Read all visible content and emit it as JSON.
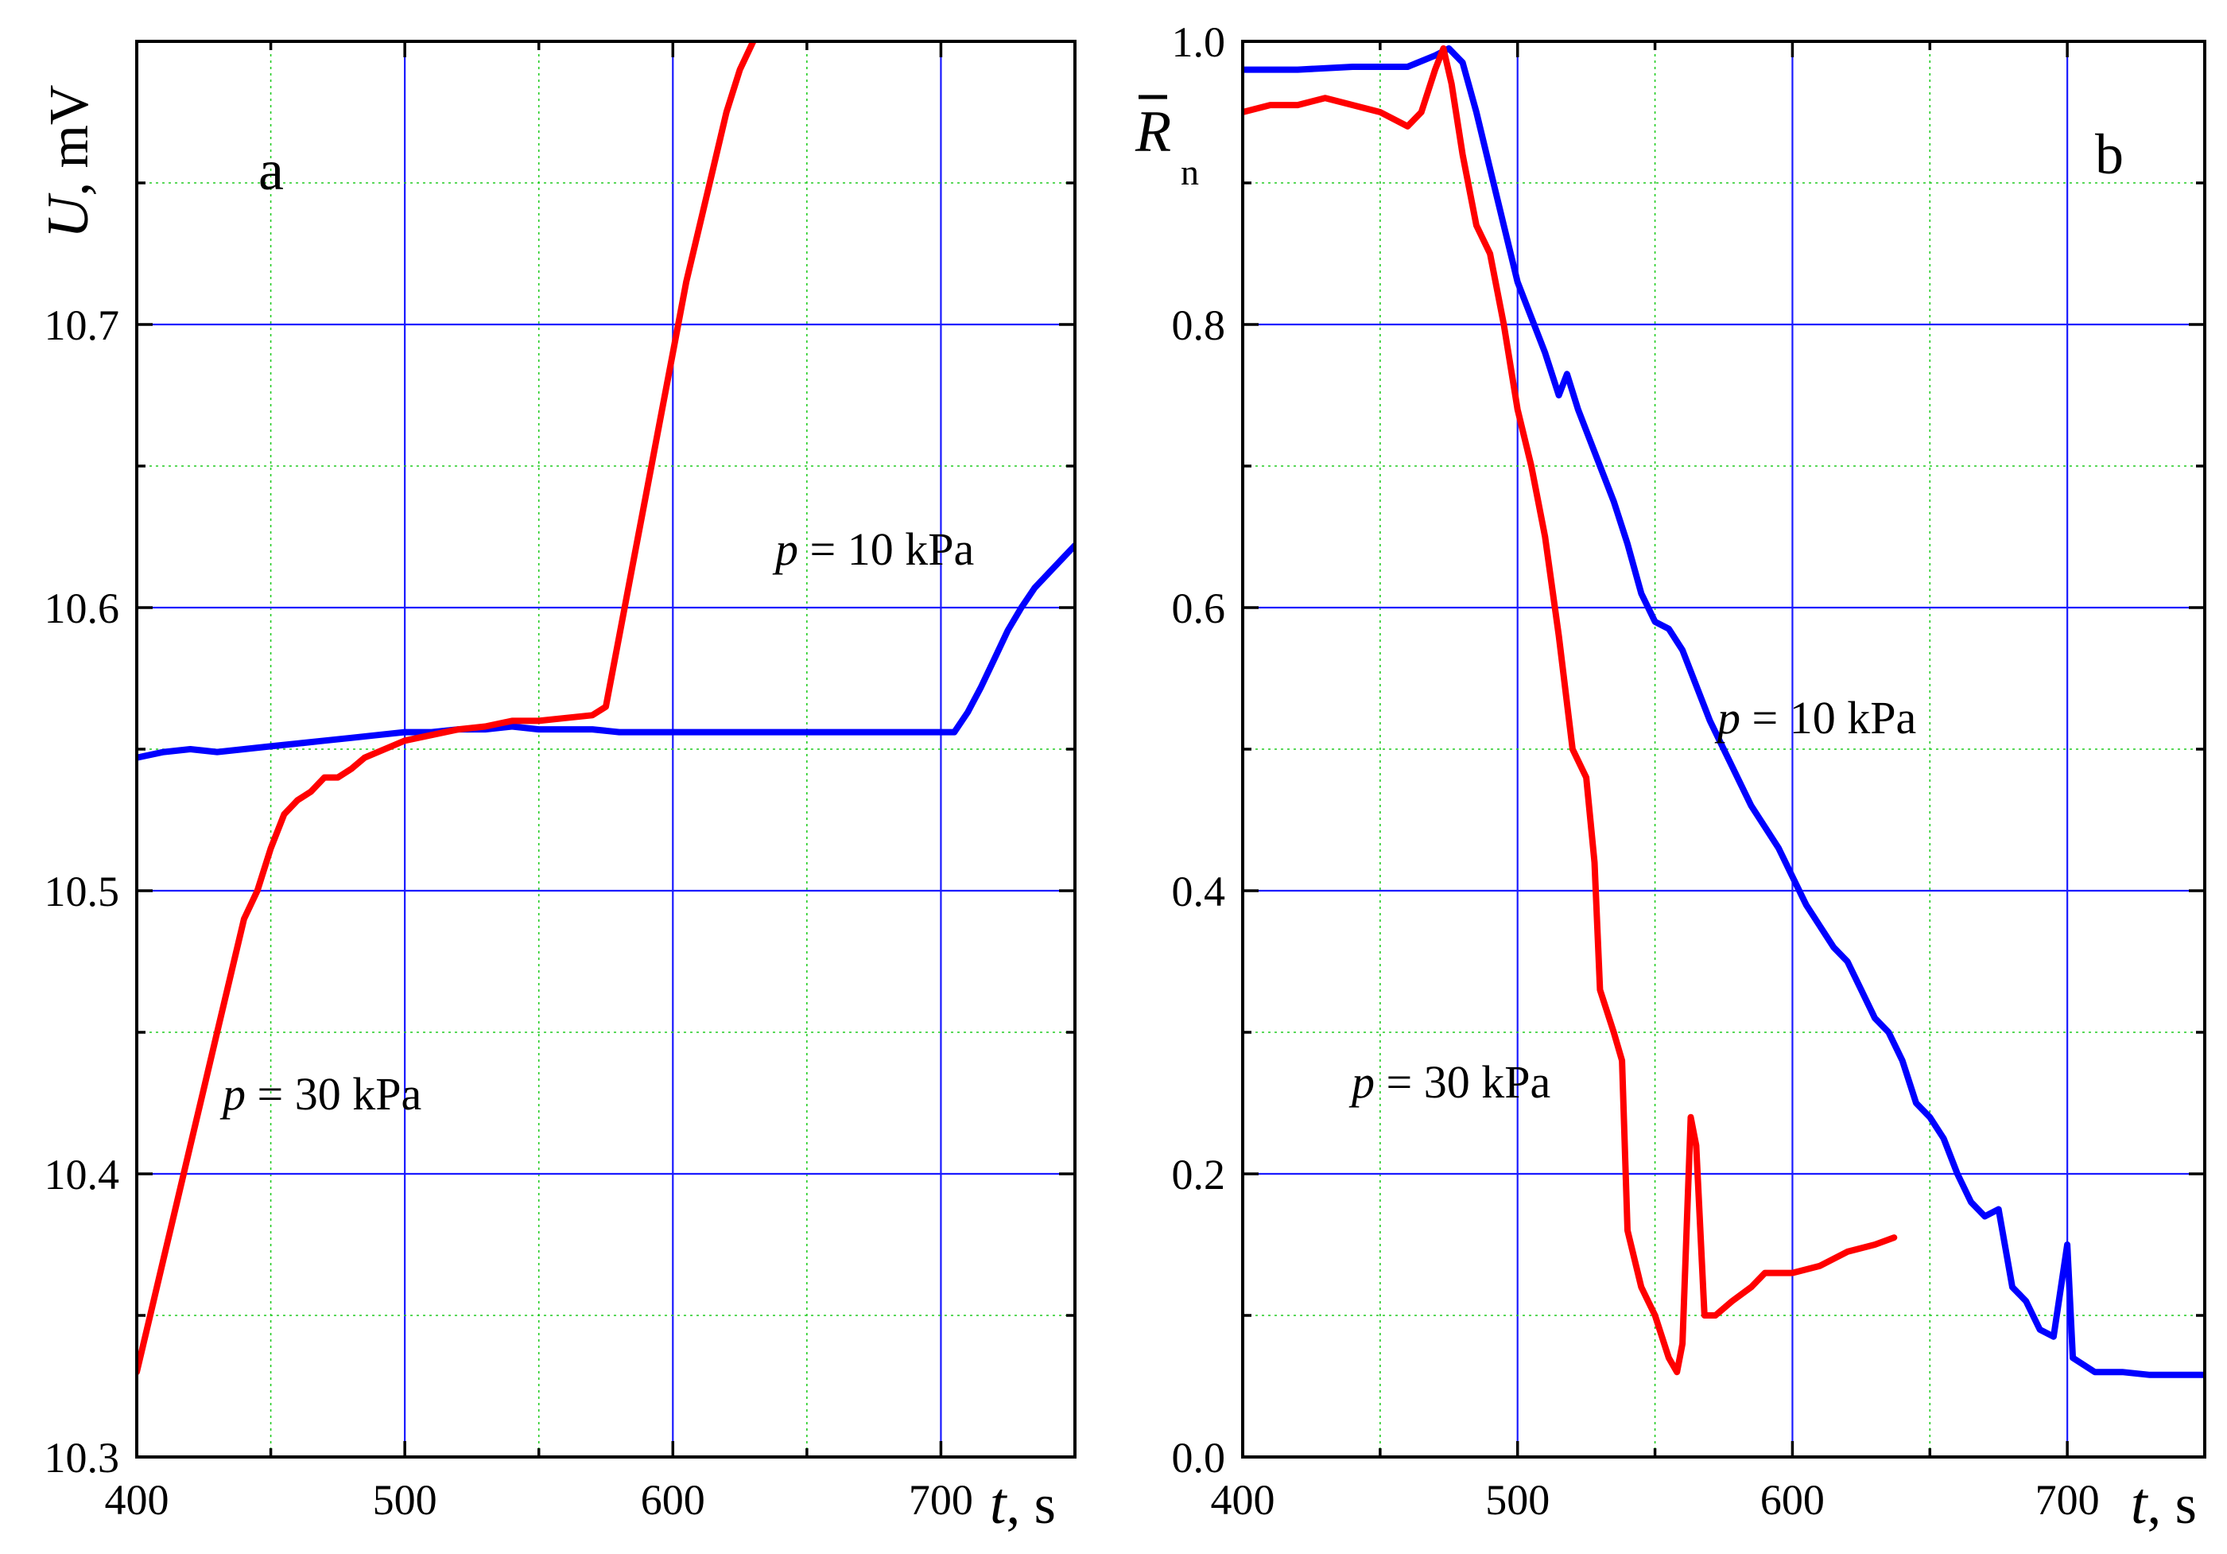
{
  "chart_data": [
    {
      "type": "line",
      "panel_label": "a",
      "ylabel_var": "U",
      "ylabel_unit": ", mV",
      "xlabel_var": "t",
      "xlabel_unit": ", s",
      "xlim": [
        400,
        750
      ],
      "ylim": [
        10.3,
        10.8
      ],
      "x_major_ticks": [
        400,
        500,
        600,
        700
      ],
      "x_minor_ticks": [
        450,
        550,
        650
      ],
      "y_major_ticks": [
        10.3,
        10.4,
        10.5,
        10.6,
        10.7
      ],
      "y_minor_ticks": [
        10.35,
        10.45,
        10.55,
        10.65,
        10.75
      ],
      "x_tick_labels": [
        "400",
        "500",
        "600",
        "700"
      ],
      "y_tick_labels": [
        "10.3",
        "10.4",
        "10.5",
        "10.6",
        "10.7"
      ],
      "grid": true,
      "annotations": [
        {
          "var": "p",
          "text": " = 10 kPa",
          "series": "p = 10 kPa"
        },
        {
          "var": "p",
          "text": " = 30 kPa",
          "series": "p = 30 kPa"
        }
      ],
      "series": [
        {
          "name": "p = 10 kPa",
          "color": "#0000ff",
          "points": [
            [
              400,
              10.547
            ],
            [
              410,
              10.549
            ],
            [
              420,
              10.55
            ],
            [
              430,
              10.549
            ],
            [
              440,
              10.55
            ],
            [
              450,
              10.551
            ],
            [
              460,
              10.552
            ],
            [
              470,
              10.553
            ],
            [
              480,
              10.554
            ],
            [
              490,
              10.555
            ],
            [
              500,
              10.556
            ],
            [
              510,
              10.556
            ],
            [
              520,
              10.557
            ],
            [
              530,
              10.557
            ],
            [
              540,
              10.558
            ],
            [
              550,
              10.557
            ],
            [
              560,
              10.557
            ],
            [
              570,
              10.557
            ],
            [
              580,
              10.556
            ],
            [
              590,
              10.556
            ],
            [
              600,
              10.556
            ],
            [
              610,
              10.556
            ],
            [
              620,
              10.556
            ],
            [
              630,
              10.556
            ],
            [
              640,
              10.556
            ],
            [
              650,
              10.556
            ],
            [
              660,
              10.556
            ],
            [
              670,
              10.556
            ],
            [
              680,
              10.556
            ],
            [
              690,
              10.556
            ],
            [
              700,
              10.556
            ],
            [
              705,
              10.556
            ],
            [
              710,
              10.563
            ],
            [
              715,
              10.572
            ],
            [
              720,
              10.582
            ],
            [
              725,
              10.592
            ],
            [
              730,
              10.6
            ],
            [
              735,
              10.607
            ],
            [
              740,
              10.612
            ],
            [
              745,
              10.617
            ],
            [
              750,
              10.622
            ]
          ]
        },
        {
          "name": "p = 30 kPa",
          "color": "#ff0000",
          "points": [
            [
              400,
              10.33
            ],
            [
              405,
              10.35
            ],
            [
              410,
              10.37
            ],
            [
              415,
              10.39
            ],
            [
              420,
              10.41
            ],
            [
              425,
              10.43
            ],
            [
              430,
              10.45
            ],
            [
              435,
              10.47
            ],
            [
              440,
              10.49
            ],
            [
              445,
              10.5
            ],
            [
              450,
              10.515
            ],
            [
              455,
              10.527
            ],
            [
              460,
              10.532
            ],
            [
              465,
              10.535
            ],
            [
              470,
              10.54
            ],
            [
              475,
              10.54
            ],
            [
              480,
              10.543
            ],
            [
              485,
              10.547
            ],
            [
              490,
              10.549
            ],
            [
              495,
              10.551
            ],
            [
              500,
              10.553
            ],
            [
              510,
              10.555
            ],
            [
              520,
              10.557
            ],
            [
              530,
              10.558
            ],
            [
              540,
              10.56
            ],
            [
              550,
              10.56
            ],
            [
              560,
              10.561
            ],
            [
              570,
              10.562
            ],
            [
              575,
              10.565
            ],
            [
              580,
              10.59
            ],
            [
              585,
              10.615
            ],
            [
              590,
              10.64
            ],
            [
              595,
              10.665
            ],
            [
              600,
              10.69
            ],
            [
              605,
              10.715
            ],
            [
              610,
              10.735
            ],
            [
              615,
              10.755
            ],
            [
              620,
              10.775
            ],
            [
              625,
              10.79
            ],
            [
              630,
              10.8
            ]
          ]
        }
      ]
    },
    {
      "type": "line",
      "panel_label": "b",
      "ylabel_var": "R",
      "ylabel_sub": "n",
      "xlabel_var": "t",
      "xlabel_unit": ", s",
      "xlim": [
        400,
        750
      ],
      "ylim": [
        0.0,
        1.0
      ],
      "x_major_ticks": [
        400,
        500,
        600,
        700
      ],
      "x_minor_ticks": [
        450,
        550,
        650
      ],
      "y_major_ticks": [
        0.0,
        0.2,
        0.4,
        0.6,
        0.8,
        1.0
      ],
      "y_minor_ticks": [
        0.1,
        0.3,
        0.5,
        0.7,
        0.9
      ],
      "x_tick_labels": [
        "400",
        "500",
        "600",
        "700"
      ],
      "y_tick_labels": [
        "0.0",
        "0.2",
        "0.4",
        "0.6",
        "0.8",
        "1.0"
      ],
      "grid": true,
      "annotations": [
        {
          "var": "p",
          "text": " = 10 kPa",
          "series": "p = 10 kPa"
        },
        {
          "var": "p",
          "text": " = 30 kPa",
          "series": "p = 30 kPa"
        }
      ],
      "series": [
        {
          "name": "p = 10 kPa",
          "color": "#0000ff",
          "points": [
            [
              400,
              0.98
            ],
            [
              420,
              0.98
            ],
            [
              440,
              0.982
            ],
            [
              460,
              0.982
            ],
            [
              470,
              0.99
            ],
            [
              475,
              0.995
            ],
            [
              480,
              0.985
            ],
            [
              485,
              0.95
            ],
            [
              490,
              0.91
            ],
            [
              495,
              0.87
            ],
            [
              500,
              0.83
            ],
            [
              505,
              0.805
            ],
            [
              510,
              0.78
            ],
            [
              515,
              0.75
            ],
            [
              518,
              0.765
            ],
            [
              522,
              0.74
            ],
            [
              526,
              0.72
            ],
            [
              530,
              0.7
            ],
            [
              535,
              0.675
            ],
            [
              540,
              0.645
            ],
            [
              545,
              0.61
            ],
            [
              550,
              0.59
            ],
            [
              555,
              0.585
            ],
            [
              560,
              0.57
            ],
            [
              565,
              0.545
            ],
            [
              570,
              0.52
            ],
            [
              575,
              0.5
            ],
            [
              580,
              0.48
            ],
            [
              585,
              0.46
            ],
            [
              590,
              0.445
            ],
            [
              595,
              0.43
            ],
            [
              600,
              0.41
            ],
            [
              605,
              0.39
            ],
            [
              610,
              0.375
            ],
            [
              615,
              0.36
            ],
            [
              620,
              0.35
            ],
            [
              625,
              0.33
            ],
            [
              630,
              0.31
            ],
            [
              635,
              0.3
            ],
            [
              640,
              0.28
            ],
            [
              645,
              0.25
            ],
            [
              650,
              0.24
            ],
            [
              655,
              0.225
            ],
            [
              660,
              0.2
            ],
            [
              665,
              0.18
            ],
            [
              670,
              0.17
            ],
            [
              675,
              0.175
            ],
            [
              680,
              0.12
            ],
            [
              685,
              0.11
            ],
            [
              690,
              0.09
            ],
            [
              695,
              0.085
            ],
            [
              700,
              0.15
            ],
            [
              702,
              0.07
            ],
            [
              710,
              0.06
            ],
            [
              720,
              0.06
            ],
            [
              730,
              0.058
            ],
            [
              740,
              0.058
            ],
            [
              750,
              0.058
            ]
          ]
        },
        {
          "name": "p = 30 kPa",
          "color": "#ff0000",
          "points": [
            [
              400,
              0.95
            ],
            [
              410,
              0.955
            ],
            [
              420,
              0.955
            ],
            [
              430,
              0.96
            ],
            [
              440,
              0.955
            ],
            [
              450,
              0.95
            ],
            [
              460,
              0.94
            ],
            [
              465,
              0.95
            ],
            [
              470,
              0.98
            ],
            [
              473,
              0.995
            ],
            [
              476,
              0.97
            ],
            [
              480,
              0.92
            ],
            [
              485,
              0.87
            ],
            [
              490,
              0.85
            ],
            [
              495,
              0.8
            ],
            [
              500,
              0.74
            ],
            [
              505,
              0.7
            ],
            [
              510,
              0.65
            ],
            [
              515,
              0.58
            ],
            [
              520,
              0.5
            ],
            [
              525,
              0.48
            ],
            [
              528,
              0.42
            ],
            [
              530,
              0.33
            ],
            [
              535,
              0.3
            ],
            [
              538,
              0.28
            ],
            [
              540,
              0.16
            ],
            [
              545,
              0.12
            ],
            [
              550,
              0.1
            ],
            [
              555,
              0.07
            ],
            [
              558,
              0.06
            ],
            [
              560,
              0.08
            ],
            [
              563,
              0.24
            ],
            [
              565,
              0.22
            ],
            [
              568,
              0.1
            ],
            [
              572,
              0.1
            ],
            [
              578,
              0.11
            ],
            [
              585,
              0.12
            ],
            [
              590,
              0.13
            ],
            [
              600,
              0.13
            ],
            [
              610,
              0.135
            ],
            [
              620,
              0.145
            ],
            [
              630,
              0.15
            ],
            [
              637,
              0.155
            ]
          ]
        }
      ]
    }
  ]
}
